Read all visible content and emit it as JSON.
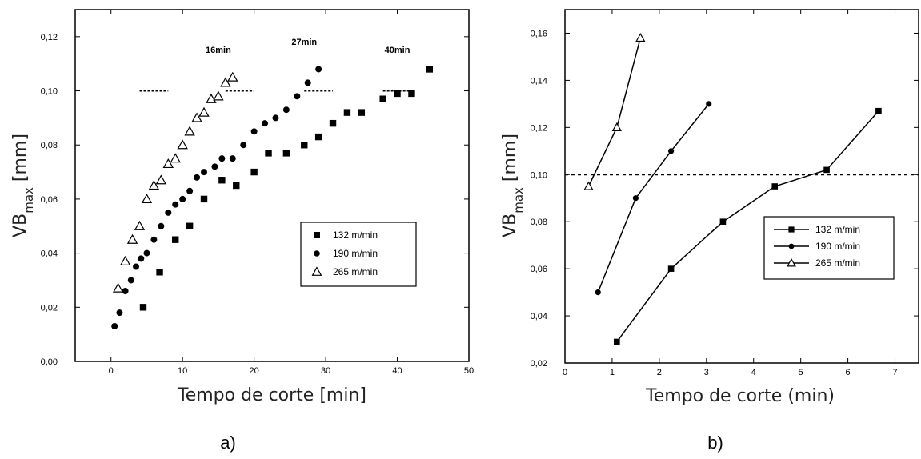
{
  "chart_data": [
    {
      "panel_label": "a)",
      "type": "scatter",
      "xlabel": "Tempo de corte [min]",
      "ylabel_main": "VB",
      "ylabel_sub": "max",
      "ylabel_unit": " [mm]",
      "xlim": [
        -5,
        50
      ],
      "ylim": [
        0,
        0.13
      ],
      "xticks": [
        0,
        10,
        20,
        30,
        40,
        50
      ],
      "xtick_labels": [
        "0",
        "10",
        "20",
        "30",
        "40",
        "50"
      ],
      "yticks": [
        0,
        0.02,
        0.04,
        0.06,
        0.08,
        0.1,
        0.12
      ],
      "ytick_labels": [
        "0,00",
        "0,02",
        "0,04",
        "0,06",
        "0,08",
        "0,10",
        "0,12"
      ],
      "series": [
        {
          "name": "132 m/min",
          "marker": "square",
          "x": [
            4.5,
            6.8,
            9,
            11,
            13,
            15.5,
            17.5,
            20,
            22,
            24.5,
            27,
            29,
            31,
            33,
            35,
            38,
            40,
            42,
            44.5
          ],
          "y": [
            0.02,
            0.033,
            0.045,
            0.05,
            0.06,
            0.067,
            0.065,
            0.07,
            0.077,
            0.077,
            0.08,
            0.083,
            0.088,
            0.092,
            0.092,
            0.097,
            0.099,
            0.099,
            0.108
          ]
        },
        {
          "name": "190 m/min",
          "marker": "circle",
          "x": [
            0.5,
            1.2,
            2,
            2.8,
            3.5,
            4.2,
            5,
            6,
            7,
            8,
            9,
            10,
            11,
            12,
            13,
            14.5,
            15.5,
            17,
            18.5,
            20,
            21.5,
            23,
            24.5,
            26,
            27.5,
            29
          ],
          "y": [
            0.013,
            0.018,
            0.026,
            0.03,
            0.035,
            0.038,
            0.04,
            0.045,
            0.05,
            0.055,
            0.058,
            0.06,
            0.063,
            0.068,
            0.07,
            0.072,
            0.075,
            0.075,
            0.08,
            0.085,
            0.088,
            0.09,
            0.093,
            0.098,
            0.103,
            0.108
          ]
        },
        {
          "name": "265 m/min",
          "marker": "triangle",
          "x": [
            1,
            2,
            3,
            4,
            5,
            6,
            7,
            8,
            9,
            10,
            11,
            12,
            13,
            14,
            15,
            16,
            17
          ],
          "y": [
            0.027,
            0.037,
            0.045,
            0.05,
            0.06,
            0.065,
            0.067,
            0.073,
            0.075,
            0.08,
            0.085,
            0.09,
            0.092,
            0.097,
            0.098,
            0.103,
            0.105
          ]
        }
      ],
      "reference_segments": [
        {
          "x": [
            4,
            8
          ],
          "y": 0.1
        },
        {
          "x": [
            16,
            20
          ],
          "y": 0.1
        },
        {
          "x": [
            27,
            31
          ],
          "y": 0.1
        },
        {
          "x": [
            38,
            42
          ],
          "y": 0.1
        }
      ],
      "annotations": [
        {
          "text": "16min",
          "x": 15,
          "y": 0.114
        },
        {
          "text": "27min",
          "x": 27,
          "y": 0.117
        },
        {
          "text": "40min",
          "x": 40,
          "y": 0.114
        }
      ],
      "legend_position": "center-right",
      "grid": false
    },
    {
      "panel_label": "b)",
      "type": "line",
      "xlabel": "Tempo de corte (min)",
      "ylabel_main": "VB",
      "ylabel_sub": "max",
      "ylabel_unit": " [mm]",
      "xlim": [
        0,
        7.5
      ],
      "ylim": [
        0.02,
        0.17
      ],
      "xticks": [
        0,
        1,
        2,
        3,
        4,
        5,
        6,
        7
      ],
      "xtick_labels": [
        "0",
        "1",
        "2",
        "3",
        "4",
        "5",
        "6",
        "7"
      ],
      "yticks": [
        0.02,
        0.04,
        0.06,
        0.08,
        0.1,
        0.12,
        0.14,
        0.16
      ],
      "ytick_labels": [
        "0,02",
        "0,04",
        "0,06",
        "0,08",
        "0,10",
        "0,12",
        "0,14",
        "0,16"
      ],
      "series": [
        {
          "name": "132 m/min",
          "marker": "square",
          "x": [
            1.1,
            2.25,
            3.35,
            4.45,
            5.55,
            6.65
          ],
          "y": [
            0.029,
            0.06,
            0.08,
            0.095,
            0.102,
            0.127
          ]
        },
        {
          "name": "190 m/min",
          "marker": "circle",
          "x": [
            0.7,
            1.5,
            2.25,
            3.05
          ],
          "y": [
            0.05,
            0.09,
            0.11,
            0.13
          ]
        },
        {
          "name": "265 m/min",
          "marker": "triangle",
          "x": [
            0.5,
            1.1,
            1.6
          ],
          "y": [
            0.095,
            0.12,
            0.158
          ]
        }
      ],
      "reference_line": {
        "y": 0.1
      },
      "legend_position": "center-right",
      "grid": false
    }
  ]
}
